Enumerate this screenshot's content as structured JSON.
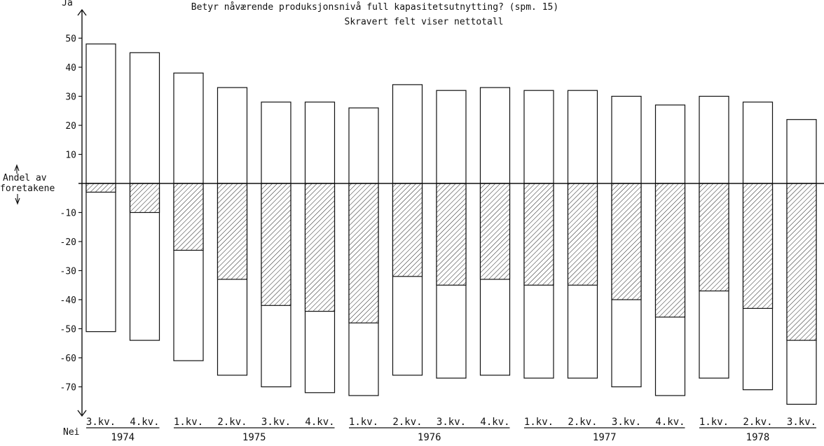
{
  "chart_data": {
    "type": "bar",
    "title": "Betyr nåværende produksjonsnivå full kapasitetsutnytting? (spm. 15)",
    "subtitle": "Skravert felt viser nettotall",
    "ylabel_top": "Ja",
    "ylabel_bottom": "Nei",
    "ylabel_middle": [
      "Andel av",
      "foretakene"
    ],
    "ylim": [
      -75,
      50
    ],
    "yticks": [
      50,
      40,
      30,
      20,
      10,
      -10,
      -20,
      -30,
      -40,
      -50,
      -60,
      -70
    ],
    "grid": false,
    "categories": [
      "3.kv.",
      "4.kv.",
      "1.kv.",
      "2.kv.",
      "3.kv.",
      "4.kv.",
      "1.kv.",
      "2.kv.",
      "3.kv.",
      "4.kv.",
      "1.kv.",
      "2.kv.",
      "3.kv.",
      "4.kv.",
      "1.kv.",
      "2.kv.",
      "3.kv."
    ],
    "year_groups": [
      {
        "label": "1974",
        "start": 0,
        "end": 1
      },
      {
        "label": "1975",
        "start": 2,
        "end": 5
      },
      {
        "label": "1976",
        "start": 6,
        "end": 9
      },
      {
        "label": "1977",
        "start": 10,
        "end": 13
      },
      {
        "label": "1978",
        "start": 14,
        "end": 16
      }
    ],
    "series": [
      {
        "name": "Ja",
        "values": [
          48,
          45,
          38,
          33,
          28,
          28,
          26,
          34,
          32,
          33,
          32,
          32,
          30,
          27,
          30,
          28,
          22
        ]
      },
      {
        "name": "Nei",
        "values": [
          -51,
          -54,
          -61,
          -66,
          -70,
          -72,
          -73,
          -66,
          -67,
          -66,
          -67,
          -67,
          -70,
          -73,
          -67,
          -71,
          -76
        ]
      },
      {
        "name": "Netto",
        "values": [
          -3,
          -10,
          -23,
          -33,
          -42,
          -44,
          -48,
          -32,
          -35,
          -33,
          -35,
          -35,
          -40,
          -46,
          -37,
          -43,
          -54
        ]
      }
    ]
  }
}
